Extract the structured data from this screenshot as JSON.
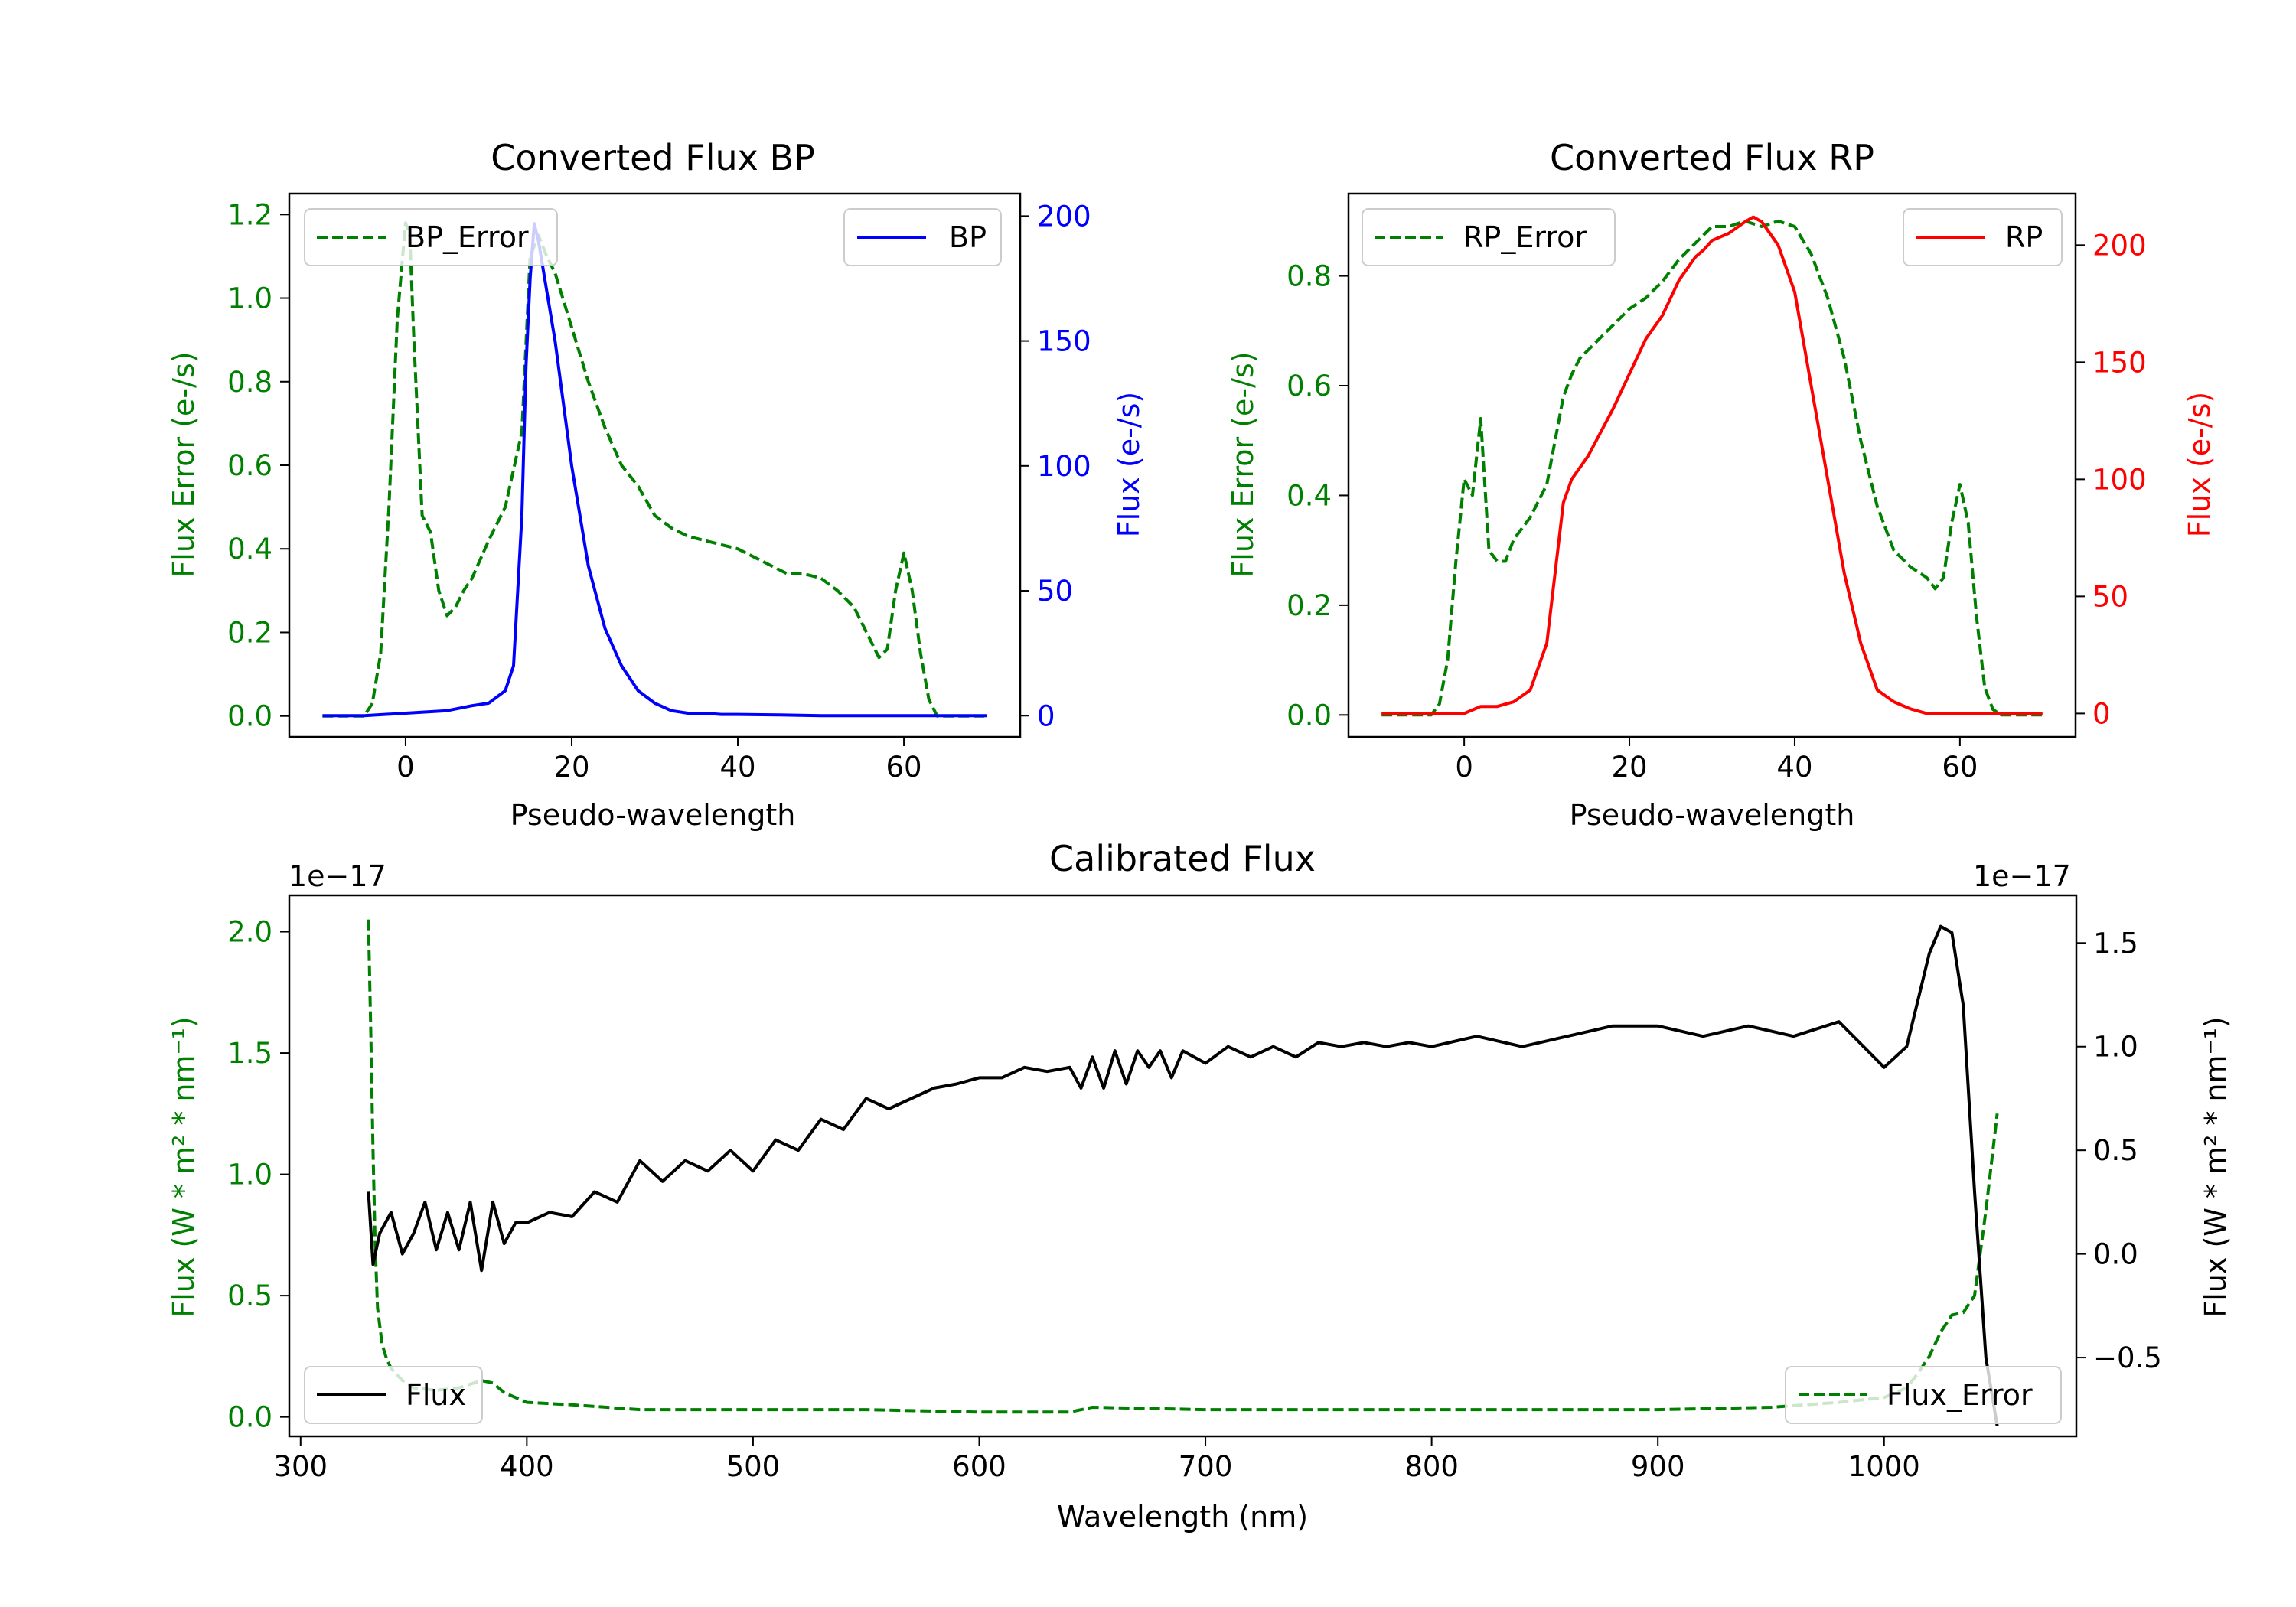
{
  "figure_title": "",
  "chart_data": [
    {
      "id": "bp",
      "type": "line",
      "title": "Converted Flux BP",
      "xlabel": "Pseudo-wavelength",
      "xlim": [
        -14,
        74
      ],
      "xticks": [
        0,
        20,
        40,
        60
      ],
      "left_axis": {
        "label": "Flux Error (e-/s)",
        "color": "#008000",
        "lim": [
          -0.05,
          1.25
        ],
        "ticks": [
          0.0,
          0.2,
          0.4,
          0.6,
          0.8,
          1.0,
          1.2
        ],
        "tick_labels": [
          "0.0",
          "0.2",
          "0.4",
          "0.6",
          "0.8",
          "1.0",
          "1.2"
        ]
      },
      "right_axis": {
        "label": "Flux (e-/s)",
        "color": "#0000ff",
        "lim": [
          -8.5,
          209
        ],
        "ticks": [
          0,
          50,
          100,
          150,
          200
        ],
        "tick_labels": [
          "0",
          "50",
          "100",
          "150",
          "200"
        ]
      },
      "series": [
        {
          "name": "BP_Error",
          "axis": "left",
          "color": "#008000",
          "dash": true,
          "x": [
            -10,
            -5,
            -4,
            -3,
            -2,
            -1,
            0,
            0.5,
            1,
            2,
            3,
            4,
            5,
            6,
            7,
            8,
            10,
            12,
            14,
            15,
            16,
            17,
            18,
            20,
            22,
            24,
            26,
            28,
            30,
            32,
            34,
            36,
            38,
            40,
            42,
            44,
            46,
            48,
            50,
            52,
            54,
            56,
            57,
            58,
            59,
            60,
            61,
            62,
            63,
            64,
            66,
            70
          ],
          "y": [
            0,
            0,
            0.03,
            0.15,
            0.5,
            0.95,
            1.18,
            1.15,
            0.9,
            0.48,
            0.44,
            0.3,
            0.24,
            0.26,
            0.3,
            0.33,
            0.42,
            0.5,
            0.68,
            1.1,
            1.15,
            1.1,
            1.06,
            0.93,
            0.8,
            0.69,
            0.6,
            0.55,
            0.48,
            0.45,
            0.43,
            0.42,
            0.41,
            0.4,
            0.38,
            0.36,
            0.34,
            0.34,
            0.33,
            0.3,
            0.26,
            0.18,
            0.14,
            0.16,
            0.3,
            0.39,
            0.3,
            0.15,
            0.04,
            0,
            0,
            0
          ]
        },
        {
          "name": "BP",
          "axis": "right",
          "color": "#0000ff",
          "dash": false,
          "x": [
            -10,
            -5,
            0,
            5,
            8,
            10,
            12,
            13,
            14,
            14.5,
            15,
            15.5,
            16,
            17,
            18,
            20,
            22,
            24,
            26,
            28,
            30,
            32,
            34,
            36,
            38,
            40,
            45,
            50,
            55,
            60,
            65,
            70
          ],
          "y": [
            0,
            0,
            1,
            2,
            4,
            5,
            10,
            20,
            80,
            140,
            175,
            197,
            190,
            170,
            150,
            100,
            60,
            35,
            20,
            10,
            5,
            2,
            1,
            1,
            0.5,
            0.5,
            0.3,
            0,
            0,
            0,
            0,
            0
          ]
        }
      ],
      "legend_left": "BP_Error",
      "legend_right": "BP"
    },
    {
      "id": "rp",
      "type": "line",
      "title": "Converted Flux RP",
      "xlabel": "Pseudo-wavelength",
      "xlim": [
        -14,
        74
      ],
      "xticks": [
        0,
        20,
        40,
        60
      ],
      "left_axis": {
        "label": "Flux Error (e-/s)",
        "color": "#008000",
        "lim": [
          -0.04,
          0.95
        ],
        "ticks": [
          0.0,
          0.2,
          0.4,
          0.6,
          0.8
        ],
        "tick_labels": [
          "0.0",
          "0.2",
          "0.4",
          "0.6",
          "0.8"
        ]
      },
      "right_axis": {
        "label": "Flux (e-/s)",
        "color": "#ff0000",
        "lim": [
          -10,
          222
        ],
        "ticks": [
          0,
          50,
          100,
          150,
          200
        ],
        "tick_labels": [
          "0",
          "50",
          "100",
          "150",
          "200"
        ]
      },
      "series": [
        {
          "name": "RP_Error",
          "axis": "left",
          "color": "#008000",
          "dash": true,
          "x": [
            -10,
            -5,
            -4,
            -3,
            -2,
            -1,
            0,
            1,
            2,
            3,
            4,
            5,
            6,
            8,
            10,
            12,
            13,
            14,
            16,
            18,
            20,
            22,
            24,
            26,
            28,
            30,
            32,
            34,
            36,
            38,
            40,
            42,
            44,
            46,
            48,
            50,
            52,
            54,
            56,
            57,
            58,
            59,
            60,
            61,
            62,
            63,
            64,
            65,
            70
          ],
          "y": [
            0,
            0,
            0,
            0.02,
            0.1,
            0.28,
            0.43,
            0.4,
            0.54,
            0.3,
            0.28,
            0.28,
            0.32,
            0.36,
            0.42,
            0.58,
            0.62,
            0.65,
            0.68,
            0.71,
            0.74,
            0.76,
            0.79,
            0.83,
            0.86,
            0.89,
            0.89,
            0.9,
            0.89,
            0.9,
            0.89,
            0.84,
            0.76,
            0.65,
            0.5,
            0.38,
            0.3,
            0.27,
            0.25,
            0.23,
            0.25,
            0.35,
            0.42,
            0.35,
            0.18,
            0.05,
            0.01,
            0,
            0
          ]
        },
        {
          "name": "RP",
          "axis": "right",
          "color": "#ff0000",
          "dash": false,
          "x": [
            -10,
            -5,
            0,
            2,
            4,
            6,
            8,
            10,
            11,
            12,
            13,
            15,
            18,
            20,
            22,
            24,
            26,
            28,
            29,
            30,
            32,
            34,
            35,
            36,
            38,
            40,
            42,
            44,
            46,
            48,
            50,
            52,
            54,
            56,
            58,
            60,
            62,
            65,
            70
          ],
          "y": [
            0,
            0,
            0,
            3,
            3,
            5,
            10,
            30,
            60,
            90,
            100,
            110,
            130,
            145,
            160,
            170,
            185,
            195,
            198,
            202,
            205,
            210,
            212,
            210,
            200,
            180,
            140,
            100,
            60,
            30,
            10,
            5,
            2,
            0,
            0,
            0,
            0,
            0,
            0
          ]
        }
      ],
      "legend_left": "RP_Error",
      "legend_right": "RP"
    },
    {
      "id": "cal",
      "type": "line",
      "title": "Calibrated Flux",
      "xlabel": "Wavelength (nm)",
      "xlim": [
        295,
        1085
      ],
      "xticks": [
        300,
        400,
        500,
        600,
        700,
        800,
        900,
        1000
      ],
      "left_axis": {
        "label": "Flux (W * m² * nm⁻¹)",
        "color": "#008000",
        "lim": [
          -0.08,
          2.15
        ],
        "ticks": [
          0.0,
          0.5,
          1.0,
          1.5,
          2.0
        ],
        "tick_labels": [
          "0.0",
          "0.5",
          "1.0",
          "1.5",
          "2.0"
        ],
        "offset_text": "1e−17"
      },
      "right_axis": {
        "label": "Flux (W * m² * nm⁻¹)",
        "color": "#000000",
        "lim": [
          -0.88,
          1.73
        ],
        "ticks": [
          -0.5,
          0.0,
          0.5,
          1.0,
          1.5
        ],
        "tick_labels": [
          "−0.5",
          "0.0",
          "0.5",
          "1.0",
          "1.5"
        ],
        "offset_text": "1e−17"
      },
      "series": [
        {
          "name": "Flux_Error",
          "axis": "left",
          "color": "#008000",
          "dash": true,
          "x": [
            330,
            331,
            332,
            333,
            334,
            336,
            338,
            340,
            345,
            350,
            360,
            370,
            380,
            385,
            390,
            400,
            420,
            450,
            500,
            550,
            600,
            630,
            640,
            650,
            700,
            800,
            900,
            950,
            980,
            1000,
            1010,
            1015,
            1020,
            1025,
            1030,
            1035,
            1040,
            1045,
            1050
          ],
          "y": [
            2.05,
            1.6,
            1.1,
            0.7,
            0.45,
            0.3,
            0.24,
            0.2,
            0.15,
            0.12,
            0.11,
            0.12,
            0.15,
            0.14,
            0.1,
            0.06,
            0.05,
            0.03,
            0.03,
            0.03,
            0.02,
            0.02,
            0.02,
            0.04,
            0.03,
            0.03,
            0.03,
            0.04,
            0.06,
            0.08,
            0.12,
            0.18,
            0.25,
            0.35,
            0.42,
            0.43,
            0.5,
            0.85,
            1.25
          ]
        },
        {
          "name": "Flux",
          "axis": "right",
          "color": "#000000",
          "dash": false,
          "x": [
            330,
            332,
            335,
            340,
            345,
            350,
            355,
            360,
            365,
            370,
            375,
            380,
            385,
            390,
            395,
            400,
            410,
            420,
            430,
            440,
            450,
            460,
            470,
            480,
            490,
            500,
            510,
            520,
            530,
            540,
            550,
            560,
            570,
            580,
            590,
            600,
            610,
            620,
            630,
            640,
            645,
            650,
            655,
            660,
            665,
            670,
            675,
            680,
            685,
            690,
            700,
            710,
            720,
            730,
            740,
            750,
            760,
            770,
            780,
            790,
            800,
            820,
            840,
            860,
            880,
            900,
            920,
            940,
            960,
            980,
            1000,
            1010,
            1020,
            1025,
            1030,
            1035,
            1040,
            1045,
            1050
          ],
          "y": [
            0.3,
            -0.05,
            0.1,
            0.2,
            0.0,
            0.1,
            0.25,
            0.02,
            0.2,
            0.02,
            0.25,
            -0.08,
            0.25,
            0.05,
            0.15,
            0.15,
            0.2,
            0.18,
            0.3,
            0.25,
            0.45,
            0.35,
            0.45,
            0.4,
            0.5,
            0.4,
            0.55,
            0.5,
            0.65,
            0.6,
            0.75,
            0.7,
            0.75,
            0.8,
            0.82,
            0.85,
            0.85,
            0.9,
            0.88,
            0.9,
            0.8,
            0.95,
            0.8,
            0.98,
            0.82,
            0.98,
            0.9,
            0.98,
            0.85,
            0.98,
            0.92,
            1.0,
            0.95,
            1.0,
            0.95,
            1.02,
            1.0,
            1.02,
            1.0,
            1.02,
            1.0,
            1.05,
            1.0,
            1.05,
            1.1,
            1.1,
            1.05,
            1.1,
            1.05,
            1.12,
            0.9,
            1.0,
            1.45,
            1.58,
            1.55,
            1.2,
            0.3,
            -0.5,
            -0.83
          ]
        }
      ],
      "legend_left": "Flux",
      "legend_right": "Flux_Error"
    }
  ]
}
